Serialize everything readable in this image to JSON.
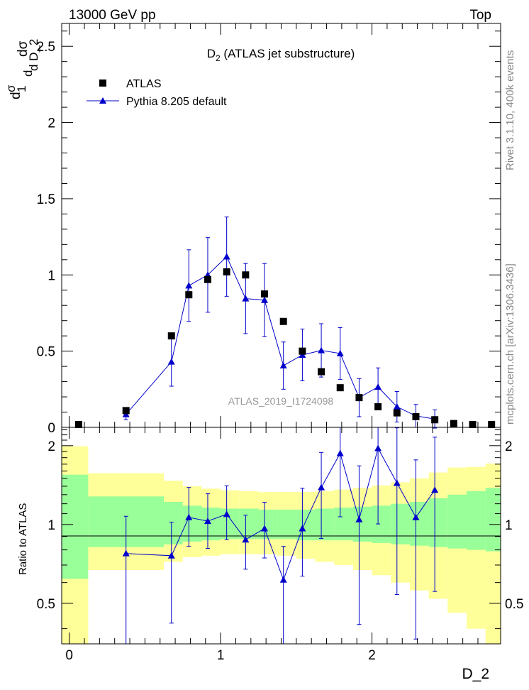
{
  "header": {
    "left": "13000 GeV pp",
    "right": "Top"
  },
  "side_labels": {
    "rivet": "Rivet 3.1.10,  400k events",
    "mcplots": "mcplots.cern.ch [arXiv:1306.3436]"
  },
  "chart_data": {
    "type": "scatter",
    "title_main": "D",
    "title_sub": "2",
    "title_rest": " (ATLAS jet substructure)",
    "watermark": "ATLAS_2019_I1724098",
    "xlabel": "D_2",
    "ylabel_top": "1/σ dσ/d D_2",
    "ylabel_ratio": "Ratio to ATLAS",
    "xlim": [
      -0.05,
      2.85
    ],
    "ylim_top": [
      0,
      2.65
    ],
    "ylim_ratio": [
      0.35,
      2.35
    ],
    "x_ticks": [
      "0",
      "1",
      "2"
    ],
    "y_ticks_top": [
      "0",
      "0.5",
      "1",
      "1.5",
      "2",
      "2.5"
    ],
    "y_ticks_ratio": [
      "0.5",
      "1",
      "2"
    ],
    "legend": {
      "data": "ATLAS",
      "mc": "Pythia 8.205 default"
    },
    "data_series": {
      "name": "ATLAS",
      "x": [
        0.062,
        0.375,
        0.675,
        0.79,
        0.915,
        1.04,
        1.165,
        1.29,
        1.415,
        1.54,
        1.665,
        1.79,
        1.915,
        2.04,
        2.165,
        2.29,
        2.415,
        2.54,
        2.665,
        2.79
      ],
      "y": [
        0.0,
        0.11,
        0.6,
        0.87,
        0.97,
        1.02,
        1.0,
        0.875,
        0.695,
        0.5,
        0.365,
        0.26,
        0.195,
        0.135,
        0.095,
        0.07,
        0.05,
        0.025,
        0.012,
        0.006
      ]
    },
    "mc_series": {
      "name": "Pythia 8.205 default",
      "x": [
        0.375,
        0.675,
        0.79,
        0.915,
        1.04,
        1.165,
        1.29,
        1.415,
        1.54,
        1.665,
        1.79,
        1.915,
        2.04,
        2.165,
        2.29,
        2.415
      ],
      "y": [
        0.085,
        0.43,
        0.93,
        1.0,
        1.12,
        0.845,
        0.835,
        0.405,
        0.475,
        0.505,
        0.485,
        0.195,
        0.265,
        0.135,
        0.075,
        0.055
      ],
      "err": [
        0.035,
        0.16,
        0.235,
        0.245,
        0.26,
        0.23,
        0.24,
        0.155,
        0.17,
        0.175,
        0.17,
        0.125,
        0.125,
        0.1,
        0.075,
        0.06
      ]
    },
    "ratio_series": {
      "x": [
        0.375,
        0.675,
        0.79,
        0.915,
        1.04,
        1.165,
        1.29,
        1.415,
        1.54,
        1.665,
        1.79,
        1.915,
        2.04,
        2.165,
        2.29,
        2.415
      ],
      "y": [
        0.775,
        0.76,
        1.065,
        1.03,
        1.095,
        0.875,
        0.965,
        0.615,
        0.965,
        1.385,
        1.87,
        1.045,
        1.955,
        1.44,
        1.065,
        1.355
      ],
      "err_lo": [
        0.45,
        0.34,
        0.24,
        0.22,
        0.22,
        0.2,
        0.22,
        0.27,
        0.33,
        0.5,
        0.8,
        0.63,
        0.95,
        0.9,
        0.7,
        0.8
      ],
      "err_hi": [
        0.3,
        0.26,
        0.32,
        0.28,
        0.31,
        0.21,
        0.25,
        0.21,
        0.41,
        0.5,
        0.8,
        0.63,
        0.95,
        0.9,
        0.7,
        0.8
      ]
    },
    "bands": {
      "edges": [
        -0.05,
        0.125,
        0.25,
        0.625,
        0.75,
        0.875,
        1.0,
        1.125,
        1.25,
        1.375,
        1.5,
        1.625,
        1.75,
        1.875,
        2.0,
        2.125,
        2.25,
        2.375,
        2.5,
        2.625,
        2.75,
        2.85
      ],
      "green_lo": [
        0.62,
        0.82,
        0.82,
        0.84,
        0.86,
        0.87,
        0.88,
        0.88,
        0.88,
        0.88,
        0.87,
        0.87,
        0.87,
        0.86,
        0.85,
        0.84,
        0.83,
        0.82,
        0.81,
        0.8,
        0.79
      ],
      "green_hi": [
        1.55,
        1.28,
        1.28,
        1.22,
        1.18,
        1.16,
        1.15,
        1.15,
        1.14,
        1.14,
        1.14,
        1.15,
        1.16,
        1.17,
        1.18,
        1.2,
        1.22,
        1.26,
        1.3,
        1.34,
        1.38
      ],
      "yellow_lo": [
        0.2,
        0.67,
        0.67,
        0.72,
        0.75,
        0.76,
        0.77,
        0.77,
        0.77,
        0.76,
        0.74,
        0.72,
        0.7,
        0.67,
        0.64,
        0.6,
        0.56,
        0.52,
        0.46,
        0.4,
        0.35
      ],
      "yellow_hi": [
        1.99,
        1.57,
        1.57,
        1.47,
        1.4,
        1.37,
        1.35,
        1.34,
        1.33,
        1.33,
        1.33,
        1.34,
        1.36,
        1.38,
        1.41,
        1.45,
        1.5,
        1.58,
        1.65,
        1.66,
        1.71
      ],
      "green_color": "#99ff99",
      "yellow_color": "#ffff99"
    },
    "colors": {
      "data": "#000000",
      "mc": "#0000cc",
      "watermark": "#999999",
      "side_text": "#888888"
    }
  }
}
